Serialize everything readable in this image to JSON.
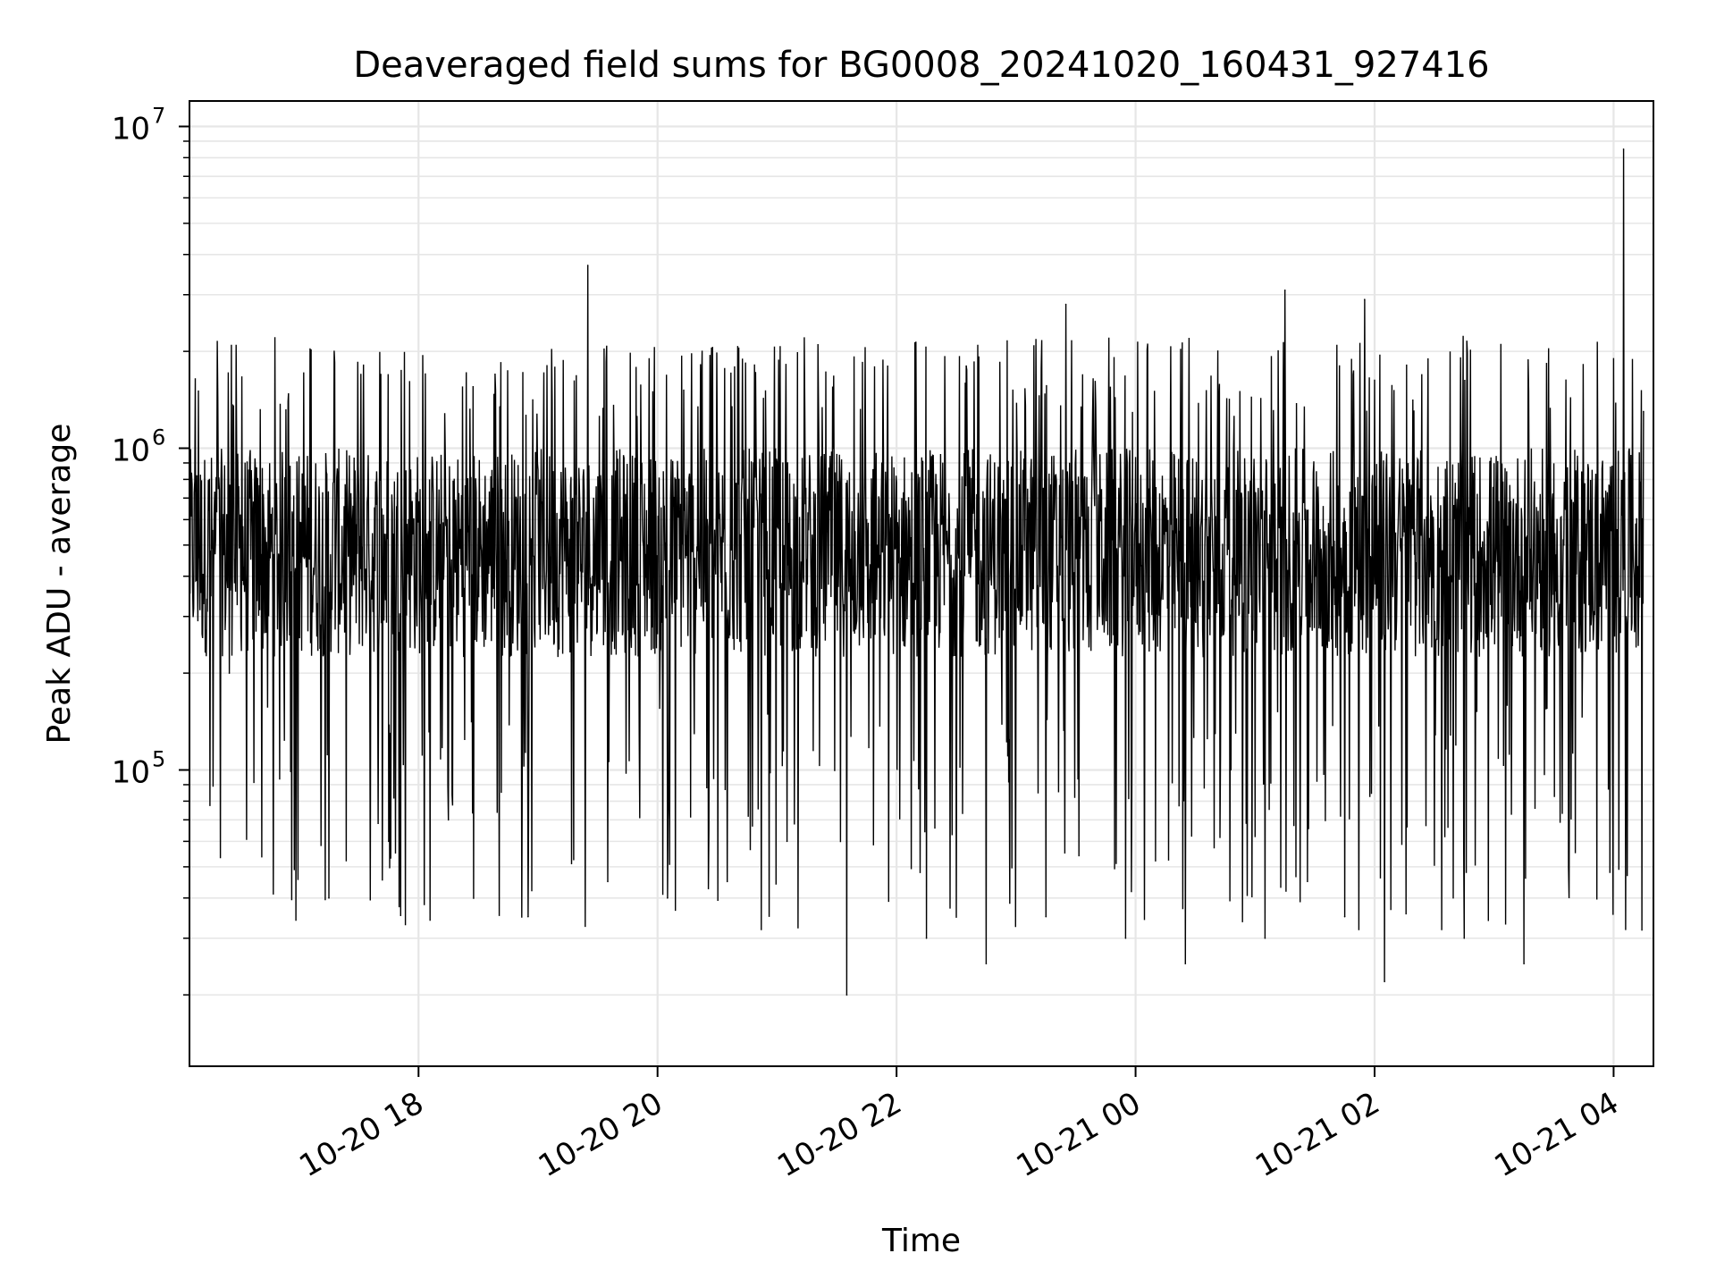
{
  "chart_data": {
    "type": "line",
    "title": "Deaveraged field sums for BG0008_20241020_160431_927416",
    "xlabel": "Time",
    "ylabel": "Peak ADU - average",
    "x_range": [
      "2024-10-20 16:05",
      "2024-10-21 04:20"
    ],
    "y_range": [
      12000,
      12000000
    ],
    "y_scale": "log",
    "grid": true,
    "x_ticks": [
      {
        "value": "2024-10-20 18:00",
        "label": "10-20 18"
      },
      {
        "value": "2024-10-20 20:00",
        "label": "10-20 20"
      },
      {
        "value": "2024-10-20 22:00",
        "label": "10-20 22"
      },
      {
        "value": "2024-10-21 00:00",
        "label": "10-21 00"
      },
      {
        "value": "2024-10-21 02:00",
        "label": "10-21 02"
      },
      {
        "value": "2024-10-21 04:00",
        "label": "10-21 04"
      }
    ],
    "y_ticks": [
      {
        "value": 100000,
        "base": "10",
        "exp": "5"
      },
      {
        "value": 1000000,
        "base": "10",
        "exp": "6"
      },
      {
        "value": 10000000,
        "base": "10",
        "exp": "7"
      }
    ],
    "series": [
      {
        "color": "#000000",
        "x": [
          "2024-10-20 16:05",
          "2024-10-20 16:15",
          "2024-10-20 16:25",
          "2024-10-20 16:35",
          "2024-10-20 16:45",
          "2024-10-20 16:55",
          "2024-10-20 17:05",
          "2024-10-20 17:15",
          "2024-10-20 17:25",
          "2024-10-20 17:35",
          "2024-10-20 17:45",
          "2024-10-20 17:55",
          "2024-10-20 18:05",
          "2024-10-20 18:15",
          "2024-10-20 18:25",
          "2024-10-20 18:35",
          "2024-10-20 18:45",
          "2024-10-20 18:55",
          "2024-10-20 19:05",
          "2024-10-20 19:15",
          "2024-10-20 19:25",
          "2024-10-20 19:35",
          "2024-10-20 19:45",
          "2024-10-20 19:55",
          "2024-10-20 20:05",
          "2024-10-20 20:15",
          "2024-10-20 20:25",
          "2024-10-20 20:35",
          "2024-10-20 20:45",
          "2024-10-20 20:55",
          "2024-10-20 21:05",
          "2024-10-20 21:15",
          "2024-10-20 21:25",
          "2024-10-20 21:35",
          "2024-10-20 21:45",
          "2024-10-20 21:55",
          "2024-10-20 22:05",
          "2024-10-20 22:15",
          "2024-10-20 22:25",
          "2024-10-20 22:35",
          "2024-10-20 22:45",
          "2024-10-20 22:55",
          "2024-10-20 23:05",
          "2024-10-20 23:15",
          "2024-10-20 23:25",
          "2024-10-20 23:35",
          "2024-10-20 23:45",
          "2024-10-20 23:55",
          "2024-10-21 00:05",
          "2024-10-21 00:15",
          "2024-10-21 00:25",
          "2024-10-21 00:35",
          "2024-10-21 00:45",
          "2024-10-21 00:55",
          "2024-10-21 01:05",
          "2024-10-21 01:15",
          "2024-10-21 01:25",
          "2024-10-21 01:35",
          "2024-10-21 01:45",
          "2024-10-21 01:55",
          "2024-10-21 02:05",
          "2024-10-21 02:15",
          "2024-10-21 02:25",
          "2024-10-21 02:35",
          "2024-10-21 02:45",
          "2024-10-21 02:55",
          "2024-10-21 03:05",
          "2024-10-21 03:15",
          "2024-10-21 03:25",
          "2024-10-21 03:35",
          "2024-10-21 03:45",
          "2024-10-21 03:55",
          "2024-10-21 04:05",
          "2024-10-21 04:15"
        ],
        "values": [
          600000,
          800000,
          200000,
          700000,
          450000,
          500000,
          650000,
          40000,
          550000,
          500000,
          60000,
          600000,
          550000,
          70000,
          550000,
          600000,
          500000,
          35000,
          500000,
          600000,
          3700000,
          45000,
          550000,
          500000,
          40000,
          550000,
          600000,
          45000,
          500000,
          550000,
          60000,
          450000,
          550000,
          20000,
          600000,
          500000,
          600000,
          30000,
          550000,
          1800000,
          25000,
          650000,
          600000,
          35000,
          2800000,
          600000,
          500000,
          30000,
          650000,
          700000,
          25000,
          600000,
          650000,
          700000,
          30000,
          3100000,
          600000,
          550000,
          35000,
          2900000,
          22000,
          550000,
          600000,
          700000,
          30000,
          550000,
          600000,
          25000,
          600000,
          500000,
          550000,
          700000,
          8500000,
          1300000
        ]
      }
    ]
  }
}
